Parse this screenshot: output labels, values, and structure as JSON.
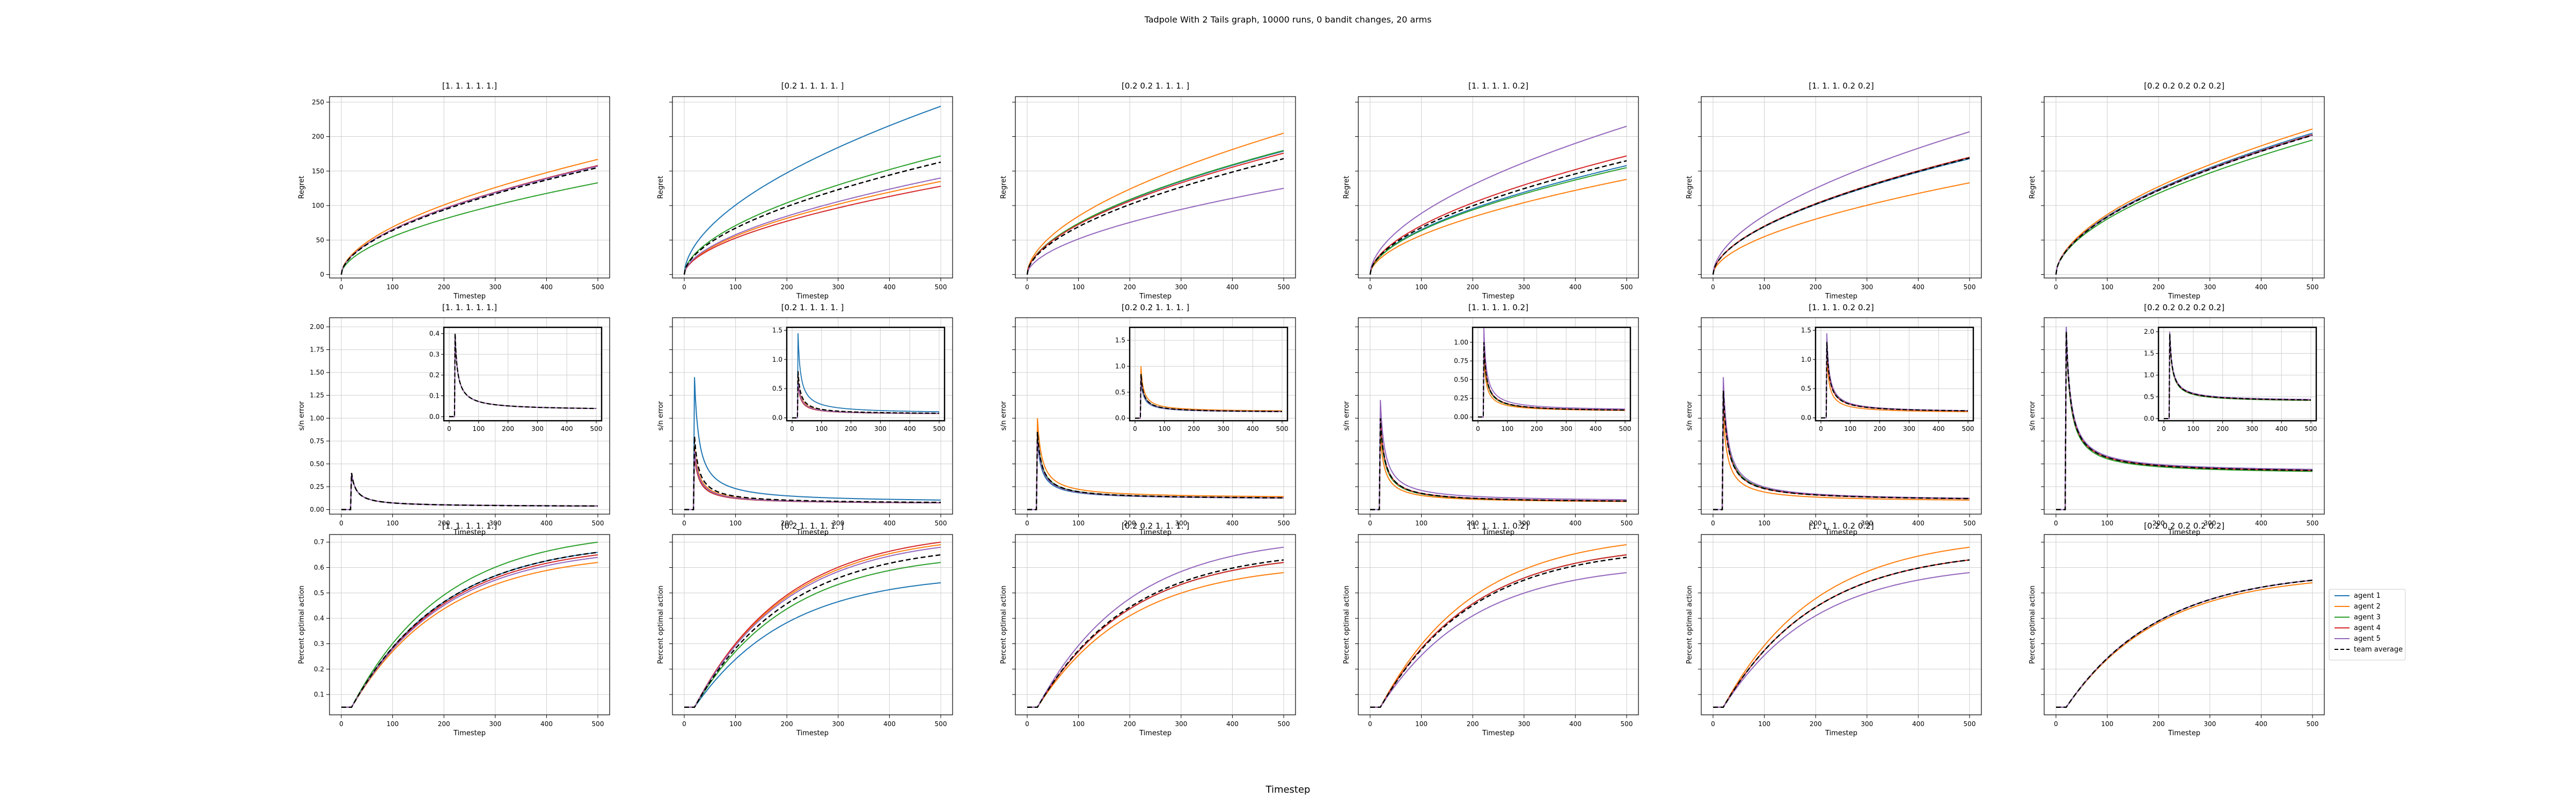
{
  "figure": {
    "title": "Tadpole With 2 Tails graph, 10000 runs, 0 bandit changes, 20 arms",
    "bottom_label": "Timestep"
  },
  "colors": {
    "agent 1": "#1f77b4",
    "agent 2": "#ff7f0e",
    "agent 3": "#2ca02c",
    "agent 4": "#d62728",
    "agent 5": "#9467bd",
    "team average": "#000000"
  },
  "legend": {
    "placement": "right of bottom-right panel",
    "entries": [
      "agent 1",
      "agent 2",
      "agent 3",
      "agent 4",
      "agent 5",
      "team average"
    ]
  },
  "chart_data": {
    "type": "line",
    "x_range": [
      0,
      500
    ],
    "x_ticks": [
      0,
      100,
      200,
      300,
      400,
      500
    ],
    "xlabel": "Timestep",
    "grid": true,
    "columns": [
      "[1. 1. 1. 1. 1.]",
      "[0.2 1.  1.  1.  1. ]",
      "[0.2 0.2 1.  1.  1. ]",
      "[1.  1.  1.  1.  0.2]",
      "[1.  1.  1.  0.2 0.2]",
      "[0.2 0.2 0.2 0.2 0.2]"
    ],
    "rows": [
      {
        "metric": "regret",
        "ylabel": "Regret",
        "ylim": [
          -5,
          258
        ],
        "y_ticks": [
          0,
          50,
          100,
          150,
          200,
          250
        ],
        "final_values": [
          {
            "agent 1": 158,
            "agent 2": 167,
            "agent 3": 133,
            "agent 4": 158,
            "agent 5": 157,
            "team average": 155
          },
          {
            "agent 1": 244,
            "agent 2": 135,
            "agent 3": 172,
            "agent 4": 128,
            "agent 5": 140,
            "team average": 163
          },
          {
            "agent 1": 179,
            "agent 2": 205,
            "agent 3": 180,
            "agent 4": 176,
            "agent 5": 125,
            "team average": 168
          },
          {
            "agent 1": 158,
            "agent 2": 138,
            "agent 3": 155,
            "agent 4": 172,
            "agent 5": 215,
            "team average": 165
          },
          {
            "agent 1": 168,
            "agent 2": 133,
            "agent 3": 170,
            "agent 4": 170,
            "agent 5": 207,
            "team average": 169
          },
          {
            "agent 1": 205,
            "agent 2": 211,
            "agent 3": 195,
            "agent 4": 203,
            "agent 5": 202,
            "team average": 202
          }
        ],
        "curve_exponent": 0.55,
        "onset_timestep": 0
      },
      {
        "metric": "s/n error",
        "ylabel": "s/n error",
        "ylim": [
          -0.05,
          2.1
        ],
        "y_ticks": [
          0.0,
          0.25,
          0.5,
          0.75,
          1.0,
          1.25,
          1.5,
          1.75,
          2.0
        ],
        "onset_timestep": 20,
        "peak": [
          {
            "agent 1": 0.4,
            "agent 2": 0.4,
            "agent 3": 0.4,
            "agent 4": 0.4,
            "agent 5": 0.4,
            "team average": 0.4
          },
          {
            "agent 1": 1.45,
            "agent 2": 0.7,
            "agent 3": 0.6,
            "agent 4": 0.6,
            "agent 5": 0.65,
            "team average": 0.8
          },
          {
            "agent 1": 0.75,
            "agent 2": 1.0,
            "agent 3": 0.85,
            "agent 4": 0.8,
            "agent 5": 0.8,
            "team average": 0.85
          },
          {
            "agent 1": 1.0,
            "agent 2": 0.8,
            "agent 3": 0.95,
            "agent 4": 1.0,
            "agent 5": 1.2,
            "team average": 1.0
          },
          {
            "agent 1": 1.35,
            "agent 2": 1.05,
            "agent 3": 1.35,
            "agent 4": 1.3,
            "agent 5": 1.45,
            "team average": 1.3
          },
          {
            "agent 1": 2.0,
            "agent 2": 1.95,
            "agent 3": 1.9,
            "agent 4": 1.95,
            "agent 5": 2.0,
            "team average": 1.95
          }
        ],
        "final_values": [
          {
            "agent 1": 0.03,
            "agent 2": 0.03,
            "agent 3": 0.03,
            "agent 4": 0.03,
            "agent 5": 0.03,
            "team average": 0.03
          },
          {
            "agent 1": 0.07,
            "agent 2": 0.06,
            "agent 3": 0.06,
            "agent 4": 0.06,
            "agent 5": 0.06,
            "team average": 0.06
          },
          {
            "agent 1": 0.11,
            "agent 2": 0.12,
            "agent 3": 0.11,
            "agent 4": 0.11,
            "agent 5": 0.11,
            "team average": 0.11
          },
          {
            "agent 1": 0.07,
            "agent 2": 0.07,
            "agent 3": 0.07,
            "agent 4": 0.07,
            "agent 5": 0.08,
            "team average": 0.07
          },
          {
            "agent 1": 0.09,
            "agent 2": 0.08,
            "agent 3": 0.09,
            "agent 4": 0.09,
            "agent 5": 0.09,
            "team average": 0.09
          },
          {
            "agent 1": 0.4,
            "agent 2": 0.39,
            "agent 3": 0.38,
            "agent 4": 0.39,
            "agent 5": 0.4,
            "team average": 0.39
          }
        ],
        "inset": {
          "x_ticks": [
            0,
            100,
            200,
            300,
            400,
            500
          ],
          "ylims": [
            [
              -0.02,
              0.43
            ],
            [
              -0.05,
              1.55
            ],
            [
              -0.05,
              1.75
            ],
            [
              -0.05,
              1.2
            ],
            [
              -0.05,
              1.55
            ],
            [
              -0.05,
              2.1
            ]
          ],
          "y_ticks": [
            [
              0.0,
              0.1,
              0.2,
              0.3,
              0.4
            ],
            [
              0.0,
              0.5,
              1.0,
              1.5
            ],
            [
              0.0,
              0.5,
              1.0,
              1.5
            ],
            [
              0.0,
              0.25,
              0.5,
              0.75,
              1.0
            ],
            [
              0.0,
              0.5,
              1.0,
              1.5
            ],
            [
              0.0,
              0.5,
              1.0,
              1.5,
              2.0
            ]
          ]
        }
      },
      {
        "metric": "percent optimal action",
        "ylabel": "Percent optimal action",
        "ylim": [
          0.02,
          0.73
        ],
        "y_ticks": [
          0.1,
          0.2,
          0.3,
          0.4,
          0.5,
          0.6,
          0.7
        ],
        "onset_timestep": 20,
        "start_value": 0.05,
        "final_values": [
          {
            "agent 1": 0.66,
            "agent 2": 0.62,
            "agent 3": 0.7,
            "agent 4": 0.65,
            "agent 5": 0.64,
            "team average": 0.66
          },
          {
            "agent 1": 0.54,
            "agent 2": 0.69,
            "agent 3": 0.62,
            "agent 4": 0.7,
            "agent 5": 0.68,
            "team average": 0.65
          },
          {
            "agent 1": 0.62,
            "agent 2": 0.58,
            "agent 3": 0.62,
            "agent 4": 0.62,
            "agent 5": 0.68,
            "team average": 0.63
          },
          {
            "agent 1": 0.65,
            "agent 2": 0.69,
            "agent 3": 0.65,
            "agent 4": 0.65,
            "agent 5": 0.58,
            "team average": 0.64
          },
          {
            "agent 1": 0.63,
            "agent 2": 0.68,
            "agent 3": 0.63,
            "agent 4": 0.63,
            "agent 5": 0.58,
            "team average": 0.63
          },
          {
            "agent 1": 0.55,
            "agent 2": 0.54,
            "agent 3": 0.55,
            "agent 4": 0.55,
            "agent 5": 0.55,
            "team average": 0.55
          }
        ]
      }
    ]
  }
}
